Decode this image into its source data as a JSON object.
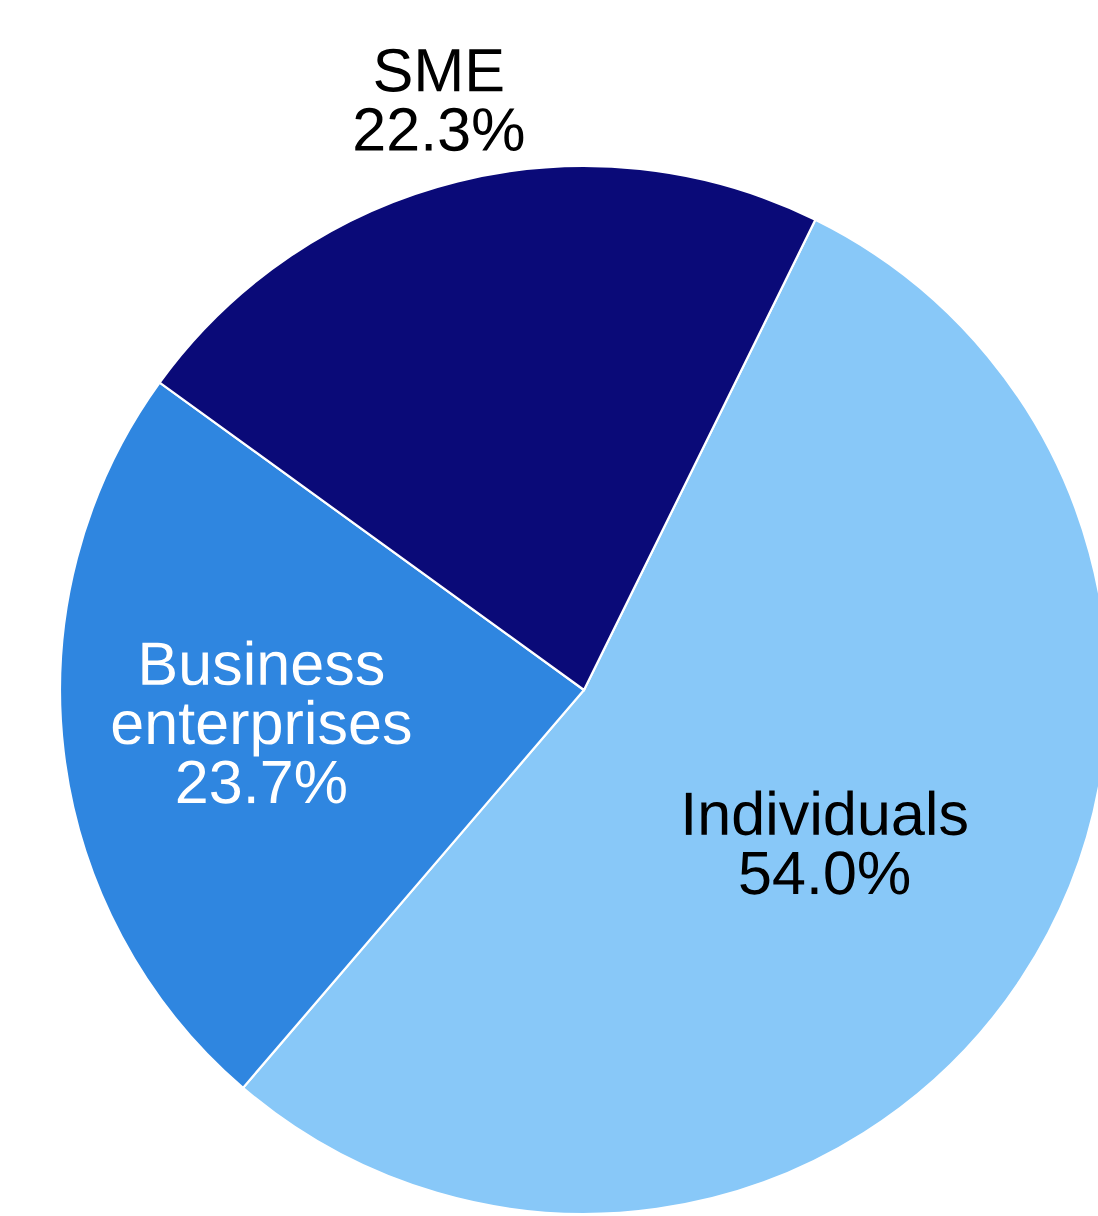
{
  "chart_data": {
    "type": "pie",
    "categories": [
      "Individuals",
      "Business\nenterprises",
      "SME"
    ],
    "values": [
      54.0,
      23.7,
      22.3
    ],
    "value_labels": [
      "54.0%",
      "23.7%",
      "22.3%"
    ],
    "colors": [
      "#88c8f8",
      "#2f86e0",
      "#0a0a78"
    ],
    "legend": false
  }
}
